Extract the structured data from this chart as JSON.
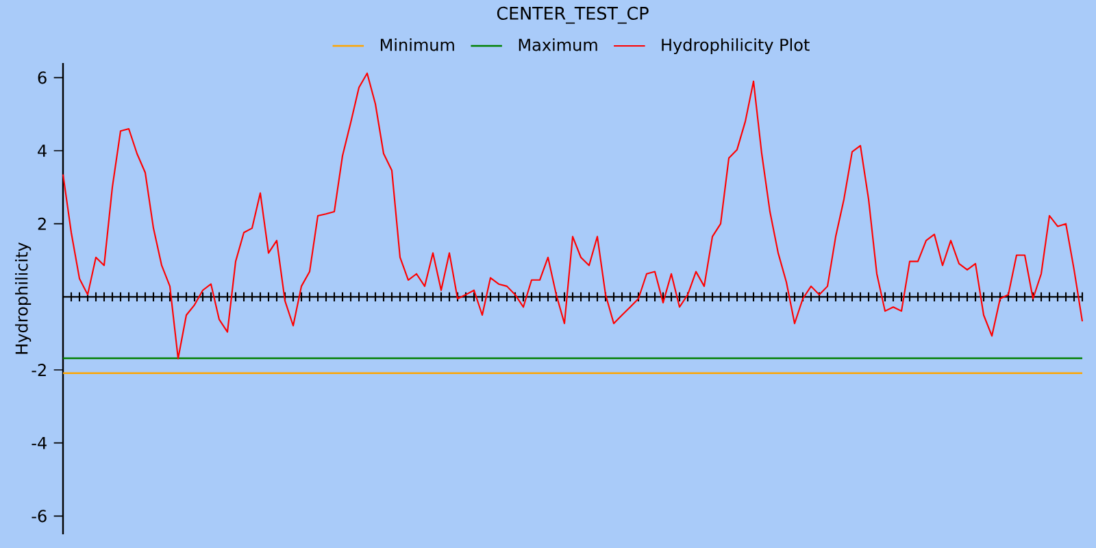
{
  "chart_data": {
    "type": "line",
    "title": "CENTER_TEST_CP",
    "ylabel": "Hydrophilicity",
    "categories": [
      null,
      null,
      null,
      null,
      null,
      null,
      null,
      null,
      null,
      null,
      null,
      null,
      null,
      null,
      null,
      null,
      null,
      null,
      null,
      null,
      null,
      null,
      null,
      null,
      null,
      null,
      null,
      null,
      null,
      null,
      null,
      null,
      null,
      null,
      null,
      null,
      null,
      null,
      null,
      null,
      null,
      null,
      null,
      null,
      null,
      null,
      null,
      null,
      null,
      null,
      null,
      null,
      null,
      null,
      null,
      null,
      null,
      null,
      null,
      null,
      null,
      null,
      null,
      null,
      null,
      null,
      null,
      null,
      null,
      null,
      null,
      null,
      null,
      null,
      null,
      null,
      null,
      null,
      null,
      null,
      null,
      null,
      null,
      null,
      null,
      null,
      null,
      null,
      null,
      null,
      null,
      null,
      null,
      null,
      null,
      null,
      null,
      null,
      null,
      null,
      null,
      null,
      null,
      null,
      null,
      null,
      null,
      null,
      null,
      null,
      null,
      null,
      null,
      null,
      null,
      null,
      null,
      null,
      null,
      null,
      null,
      null,
      null,
      null,
      null
    ],
    "series": [
      {
        "name": "Hydrophilicity Plot",
        "color": "#ff0000",
        "values": [
          3.35,
          1.76,
          0.5,
          0.06,
          1.08,
          0.86,
          3.0,
          4.54,
          4.6,
          3.92,
          3.4,
          1.88,
          0.86,
          0.29,
          -1.69,
          -0.5,
          -0.22,
          0.18,
          0.35,
          -0.62,
          -0.96,
          0.97,
          1.76,
          1.88,
          2.84,
          1.2,
          1.54,
          -0.11,
          -0.79,
          0.29,
          0.69,
          2.22,
          2.27,
          2.33,
          3.86,
          4.77,
          5.73,
          6.12,
          5.28,
          3.92,
          3.46,
          1.08,
          0.46,
          0.63,
          0.29,
          1.2,
          0.18,
          1.2,
          -0.05,
          0.06,
          0.18,
          -0.5,
          0.52,
          0.35,
          0.29,
          0.06,
          -0.28,
          0.46,
          0.46,
          1.08,
          0.06,
          -0.73,
          1.65,
          1.08,
          0.86,
          1.65,
          0.06,
          -0.73,
          -0.5,
          -0.28,
          -0.05,
          0.63,
          0.69,
          -0.16,
          0.63,
          -0.28,
          0.06,
          0.69,
          0.29,
          1.65,
          2.0,
          3.8,
          4.03,
          4.8,
          5.9,
          3.92,
          2.33,
          1.2,
          0.4,
          -0.73,
          -0.05,
          0.29,
          0.06,
          0.29,
          1.65,
          2.67,
          3.97,
          4.14,
          2.67,
          0.63,
          -0.39,
          -0.28,
          -0.39,
          0.97,
          0.97,
          1.54,
          1.71,
          0.86,
          1.54,
          0.91,
          0.74,
          0.91,
          -0.5,
          -1.07,
          -0.05,
          0.06,
          1.14,
          1.14,
          -0.05,
          0.63,
          2.22,
          1.93,
          2.0,
          0.74,
          -0.67
        ]
      }
    ],
    "ref_lines": [
      {
        "axis": "y",
        "value": -2.09,
        "label": "Minimum",
        "color": "#ffa500"
      },
      {
        "axis": "y",
        "value": -1.68,
        "label": "Maximum",
        "color": "#008000"
      }
    ],
    "ylim": [
      -6.5,
      6.4
    ],
    "yticks": [
      -6,
      -4,
      -2,
      2,
      4,
      6
    ],
    "tick_labels": "y",
    "legend": "top",
    "marker": "none",
    "grid": false
  }
}
